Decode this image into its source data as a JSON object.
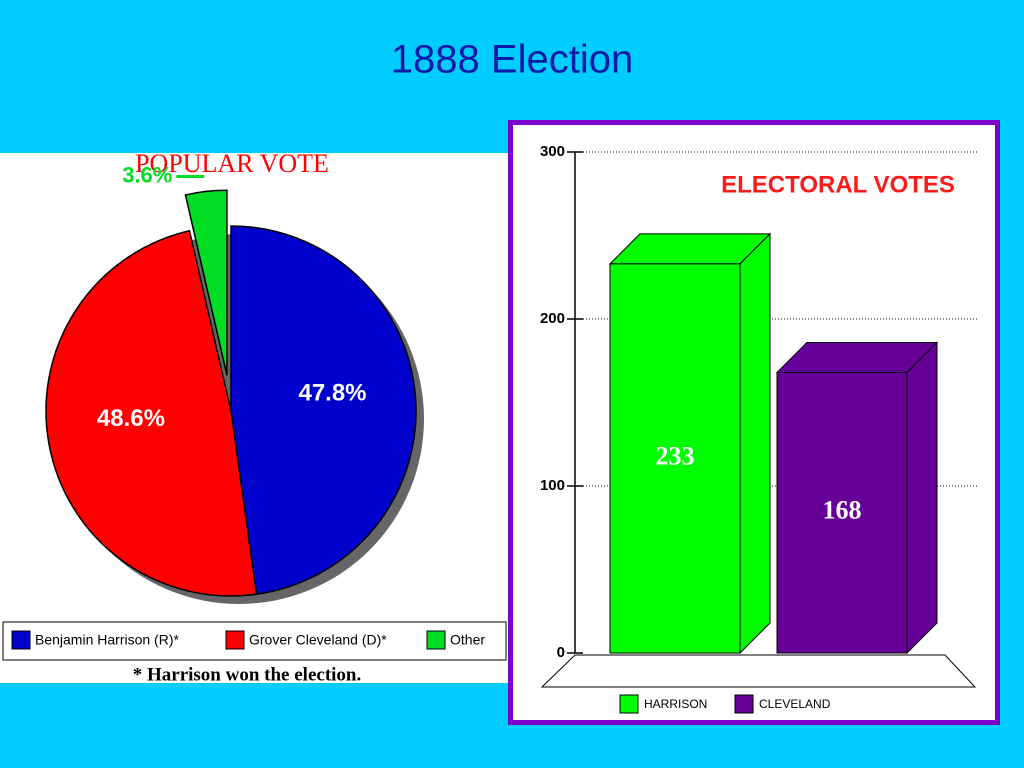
{
  "title": "1888 Election",
  "chart_data": [
    {
      "type": "pie",
      "title": "POPULAR VOTE",
      "categories": [
        "Benjamin Harrison (R)*",
        "Grover Cleveland (D)*",
        "Other"
      ],
      "values": [
        47.8,
        48.6,
        3.6
      ],
      "value_labels": [
        "47.8%",
        "48.6%",
        "3.6%"
      ],
      "colors": [
        "#0000cc",
        "#ff0000",
        "#00dd22"
      ],
      "note": "* Harrison won the election."
    },
    {
      "type": "bar",
      "title": "ELECTORAL VOTES",
      "categories": [
        "HARRISON",
        "CLEVELAND"
      ],
      "values": [
        233,
        168
      ],
      "colors": [
        "#00ff00",
        "#660099"
      ],
      "ylim": [
        0,
        300
      ],
      "yticks": [
        0,
        100,
        200,
        300
      ],
      "grid": true
    }
  ]
}
